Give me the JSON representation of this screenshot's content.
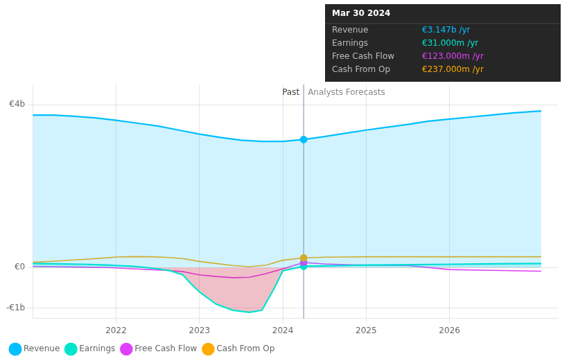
{
  "chart_data": {
    "type": "line",
    "xlim": [
      2021.0,
      2027.3
    ],
    "xticks": [
      2022,
      2023,
      2024,
      2025,
      2026
    ],
    "ylim": [
      -1250000000.0,
      4500000000.0
    ],
    "yticks": [
      {
        "value": -1000000000.0,
        "label": "-€1b"
      },
      {
        "value": 0,
        "label": "€0"
      },
      {
        "value": 4000000000.0,
        "label": "€4b"
      }
    ],
    "grid": true,
    "legend": "lower left",
    "series": [
      {
        "name": "Revenue",
        "color": "#00bfff",
        "type": "area",
        "x": [
          2021.0,
          2021.25,
          2021.5,
          2021.75,
          2022.0,
          2022.25,
          2022.5,
          2022.75,
          2023.0,
          2023.25,
          2023.5,
          2023.75,
          2024.0,
          2024.25,
          2024.5,
          2024.75,
          2025.0,
          2025.25,
          2025.5,
          2025.75,
          2026.0,
          2026.25,
          2026.5,
          2026.75,
          2027.1
        ],
        "values": [
          3750000000.0,
          3750000000.0,
          3720000000.0,
          3680000000.0,
          3620000000.0,
          3550000000.0,
          3480000000.0,
          3380000000.0,
          3280000000.0,
          3200000000.0,
          3130000000.0,
          3100000000.0,
          3100000000.0,
          3147000000.0,
          3220000000.0,
          3300000000.0,
          3380000000.0,
          3450000000.0,
          3520000000.0,
          3600000000.0,
          3650000000.0,
          3700000000.0,
          3750000000.0,
          3800000000.0,
          3850000000.0
        ]
      },
      {
        "name": "Earnings",
        "color": "#00e5cc",
        "type": "area",
        "x": [
          2021.0,
          2021.3,
          2021.6,
          2021.9,
          2022.0,
          2022.2,
          2022.35,
          2022.5,
          2022.65,
          2022.8,
          2022.9,
          2023.0,
          2023.2,
          2023.4,
          2023.6,
          2023.75,
          2023.9,
          2024.0,
          2024.25,
          2024.5,
          2024.75,
          2025.0,
          2025.5,
          2026.0,
          2026.5,
          2027.1
        ],
        "values": [
          100000000.0,
          90000000.0,
          80000000.0,
          60000000.0,
          50000000.0,
          30000000.0,
          0,
          -30000000.0,
          -80000000.0,
          -180000000.0,
          -400000000.0,
          -600000000.0,
          -900000000.0,
          -1050000000.0,
          -1100000000.0,
          -1050000000.0,
          -500000000.0,
          -80000000.0,
          31000000.0,
          40000000.0,
          50000000.0,
          60000000.0,
          70000000.0,
          80000000.0,
          90000000.0,
          100000000.0
        ]
      },
      {
        "name": "Free Cash Flow",
        "color": "#e040fb",
        "type": "line",
        "x": [
          2021.0,
          2021.3,
          2021.6,
          2021.9,
          2022.0,
          2022.2,
          2022.4,
          2022.6,
          2022.8,
          2022.9,
          2023.0,
          2023.2,
          2023.4,
          2023.6,
          2023.8,
          2024.0,
          2024.25,
          2024.5,
          2024.75,
          2025.0,
          2025.5,
          2026.0,
          2026.5,
          2027.1
        ],
        "values": [
          30000000.0,
          20000000.0,
          10000000.0,
          0,
          -10000000.0,
          -30000000.0,
          -50000000.0,
          -70000000.0,
          -100000000.0,
          -140000000.0,
          -180000000.0,
          -220000000.0,
          -250000000.0,
          -240000000.0,
          -150000000.0,
          -30000000.0,
          123000000.0,
          90000000.0,
          70000000.0,
          60000000.0,
          50000000.0,
          -50000000.0,
          -70000000.0,
          -90000000.0
        ]
      },
      {
        "name": "Cash From Op",
        "color": "#ffaa00",
        "type": "line",
        "x": [
          2021.0,
          2021.3,
          2021.6,
          2021.9,
          2022.0,
          2022.2,
          2022.4,
          2022.6,
          2022.8,
          2023.0,
          2023.2,
          2023.4,
          2023.6,
          2023.8,
          2024.0,
          2024.25,
          2024.5,
          2024.75,
          2025.0,
          2025.5,
          2026.0,
          2026.5,
          2027.1
        ],
        "values": [
          130000000.0,
          160000000.0,
          200000000.0,
          240000000.0,
          260000000.0,
          270000000.0,
          265000000.0,
          250000000.0,
          220000000.0,
          150000000.0,
          100000000.0,
          50000000.0,
          20000000.0,
          60000000.0,
          180000000.0,
          237000000.0,
          255000000.0,
          260000000.0,
          265000000.0,
          265000000.0,
          265000000.0,
          265000000.0,
          265000000.0
        ]
      }
    ],
    "annotations": [
      {
        "type": "vline",
        "x": 2024.25,
        "left_label": "Past",
        "right_label": "Analysts Forecasts"
      }
    ],
    "tooltip": {
      "title": "Mar 30 2024",
      "rows": [
        {
          "name": "Revenue",
          "value": 3147000000,
          "label": "€3.147b /yr",
          "color": "#00bfff"
        },
        {
          "name": "Earnings",
          "value": 31000000,
          "label": "€31.000m /yr",
          "color": "#00e5cc"
        },
        {
          "name": "Free Cash Flow",
          "value": 123000000,
          "label": "€123.000m /yr",
          "color": "#e040fb"
        },
        {
          "name": "Cash From Op",
          "value": 237000000,
          "label": "€237.000m /yr",
          "color": "#ffaa00"
        }
      ]
    }
  }
}
